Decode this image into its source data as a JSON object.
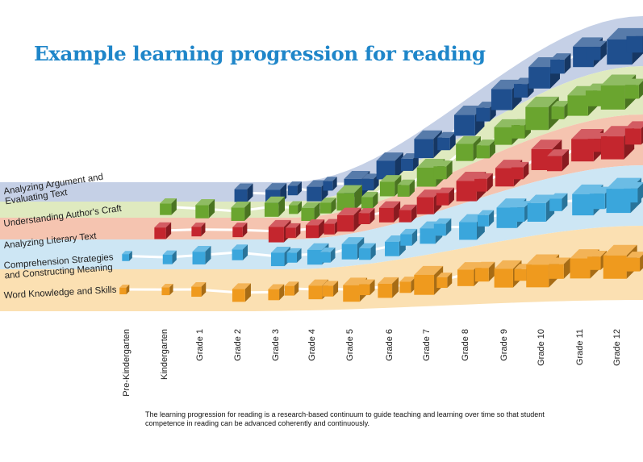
{
  "title": "Example learning progression for reading",
  "bands": [
    {
      "label_lines": [
        "Analyzing Argument and",
        "Evaluating Text"
      ],
      "fill": "#c5d0e6",
      "cube_color": "#1f4f8e"
    },
    {
      "label_lines": [
        "Understanding Author's Craft"
      ],
      "fill": "#dfeabf",
      "cube_color": "#6aa52f"
    },
    {
      "label_lines": [
        "Analyzing Literary Text"
      ],
      "fill": "#f5c4b0",
      "cube_color": "#c4262e"
    },
    {
      "label_lines": [
        "Comprehension Strategies",
        "and Constructing Meaning"
      ],
      "fill": "#cde6f4",
      "cube_color": "#3aa6dc"
    },
    {
      "label_lines": [
        "Word Knowledge and Skills"
      ],
      "fill": "#fbe0b2",
      "cube_color": "#ef9a1e"
    }
  ],
  "grades": [
    "Pre-Kindergarten",
    "Kindergarten",
    "Grade 1",
    "Grade 2",
    "Grade 3",
    "Grade 4",
    "Grade 5",
    "Grade 6",
    "Grade 7",
    "Grade 8",
    "Grade 9",
    "Grade 10",
    "Grade 11",
    "Grade 12"
  ],
  "caption": "The learning progression for reading is a research-based continuum to guide teaching and learning over time so that student competence in reading can be advanced coherently and continuously."
}
